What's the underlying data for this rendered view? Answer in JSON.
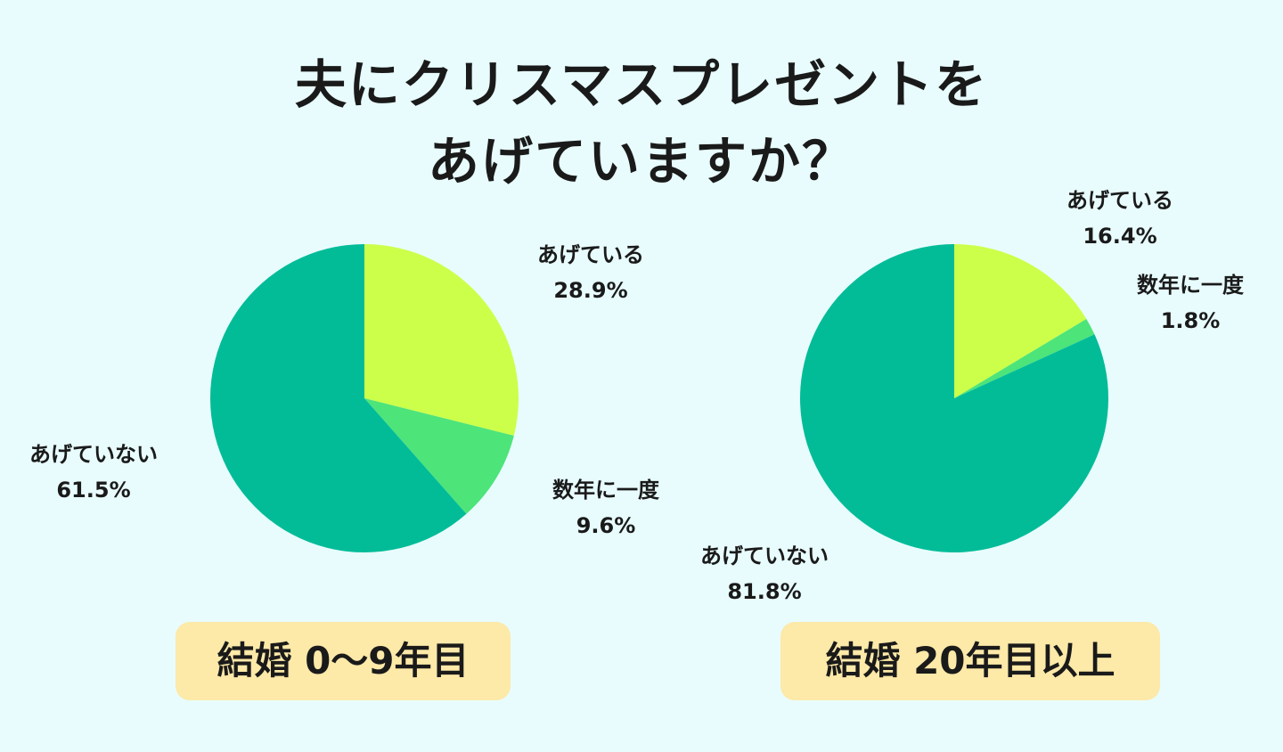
{
  "title": {
    "line1": "夫にクリスマスプレゼントを",
    "line2": "あげていますか？"
  },
  "colors": {
    "background": "#e8fcfd",
    "agete_iru": "#ccff4a",
    "sunen_ni_ichido": "#4de47a",
    "agete_inai": "#02bc98",
    "caption_bg": "#fde9a8"
  },
  "chart_data": [
    {
      "type": "pie",
      "caption": "結婚 0〜9年目",
      "slices": [
        {
          "label": "あげている",
          "value": 28.9,
          "value_text": "28.9%",
          "color": "#ccff4a"
        },
        {
          "label": "数年に一度",
          "value": 9.6,
          "value_text": "9.6%",
          "color": "#4de47a"
        },
        {
          "label": "あげていない",
          "value": 61.5,
          "value_text": "61.5%",
          "color": "#02bc98"
        }
      ]
    },
    {
      "type": "pie",
      "caption": "結婚 20年目以上",
      "slices": [
        {
          "label": "あげている",
          "value": 16.4,
          "value_text": "16.4%",
          "color": "#ccff4a"
        },
        {
          "label": "数年に一度",
          "value": 1.8,
          "value_text": "1.8%",
          "color": "#4de47a"
        },
        {
          "label": "あげていない",
          "value": 81.8,
          "value_text": "81.8%",
          "color": "#02bc98"
        }
      ]
    }
  ]
}
